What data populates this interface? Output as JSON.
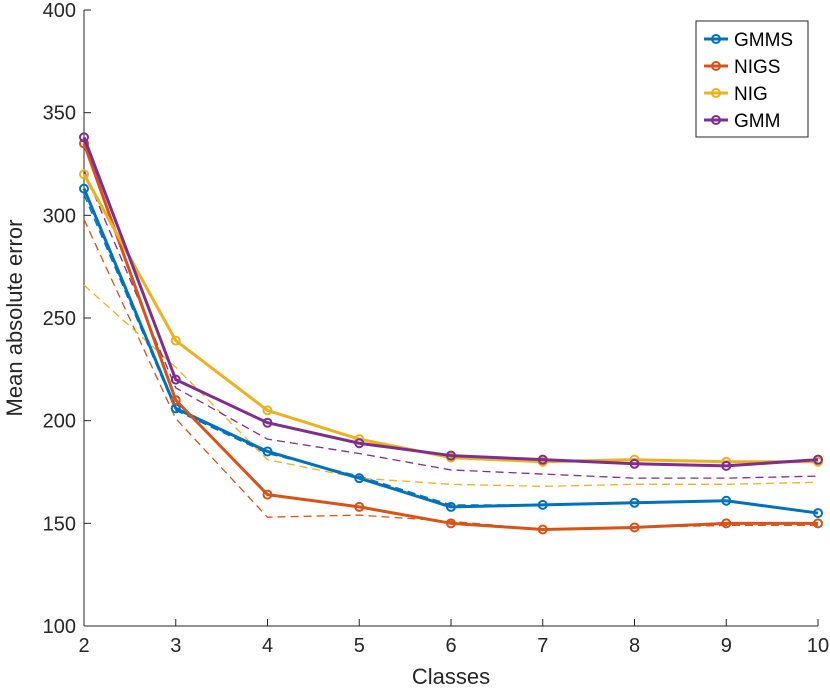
{
  "chart_data": {
    "type": "line",
    "title": "",
    "xlabel": "Classes",
    "ylabel": "Mean absolute error",
    "xlim": [
      2,
      10
    ],
    "ylim": [
      100,
      400
    ],
    "xticks": [
      2,
      3,
      4,
      5,
      6,
      7,
      8,
      9,
      10
    ],
    "yticks": [
      100,
      150,
      200,
      250,
      300,
      350,
      400
    ],
    "grid": false,
    "legend_position": "top-right",
    "x": [
      2,
      3,
      4,
      5,
      6,
      7,
      8,
      9,
      10
    ],
    "series": [
      {
        "name": "GMMS",
        "color": "#0072BD",
        "values": [
          313,
          206,
          185,
          172,
          158,
          159,
          160,
          161,
          155
        ]
      },
      {
        "name": "NIGS",
        "color": "#D95319",
        "values": [
          335,
          210,
          164,
          158,
          150,
          147,
          148,
          150,
          150
        ]
      },
      {
        "name": "NIG",
        "color": "#EDB120",
        "values": [
          320,
          239,
          205,
          191,
          182,
          180,
          181,
          180,
          180
        ]
      },
      {
        "name": "GMM",
        "color": "#7E2F8E",
        "values": [
          338,
          220,
          199,
          189,
          183,
          181,
          179,
          178,
          181
        ]
      }
    ],
    "dashed_series": [
      {
        "name": "GMMS dashed",
        "color": "#0072BD",
        "values": [
          310,
          205,
          184,
          173,
          159,
          159,
          160,
          161,
          155
        ]
      },
      {
        "name": "NIGS dashed",
        "color": "#D95319",
        "values": [
          298,
          201,
          153,
          154,
          151,
          147,
          148,
          149,
          149
        ]
      },
      {
        "name": "NIG dashed",
        "color": "#EDB120",
        "values": [
          266,
          226,
          181,
          172,
          169,
          168,
          169,
          169,
          170
        ]
      },
      {
        "name": "GMM dashed",
        "color": "#7E2F8E",
        "values": [
          322,
          216,
          191,
          184,
          176,
          174,
          172,
          172,
          173
        ]
      }
    ]
  }
}
